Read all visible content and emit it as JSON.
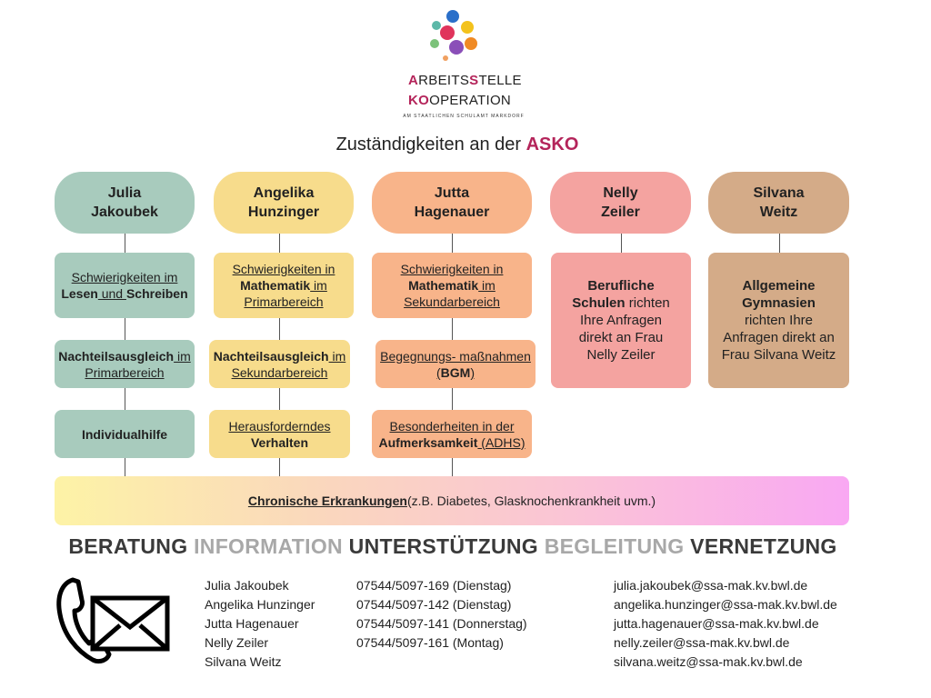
{
  "logo": {
    "line1_accent1": "A",
    "line1_a": "RBEITS",
    "line1_accent2": "S",
    "line1_b": "TELLE",
    "line2_accent": "KO",
    "line2_rest": "OPERATION",
    "subline": "AM STAATLICHEN SCHULAMT MARKDORF"
  },
  "title": {
    "prefix": "Zuständigkeiten an der ",
    "accent": "ASKO"
  },
  "colors": {
    "green": "#a8cbbd",
    "yellow": "#f7dc8c",
    "orange": "#f8b48a",
    "pink": "#f4a3a0",
    "tan": "#d4ab88",
    "accent": "#b4245a"
  },
  "people": [
    {
      "line1": "Julia",
      "line2": "Jakoubek"
    },
    {
      "line1": "Angelika",
      "line2": "Hunzinger"
    },
    {
      "line1": "Jutta",
      "line2": "Hagenauer"
    },
    {
      "line1": "Nelly",
      "line2": "Zeiler"
    },
    {
      "line1": "Silvana",
      "line2": "Weitz"
    }
  ],
  "boxes": [
    {
      "parts": [
        {
          "t": "Schwierigkeiten im "
        },
        {
          "t": "Lesen",
          "b": 1
        },
        {
          "t": " und "
        },
        {
          "t": "Schreiben",
          "b": 1
        }
      ]
    },
    {
      "parts": [
        {
          "t": "Nachteilsausgleich",
          "b": 1
        },
        {
          "t": " im Primarbereich"
        }
      ]
    },
    {
      "parts": [
        {
          "t": "Individualhilfe",
          "b": 1
        }
      ]
    },
    {
      "parts": [
        {
          "t": "Schwierigkeiten in "
        },
        {
          "t": "Mathematik",
          "b": 1
        },
        {
          "t": " im Primarbereich"
        }
      ]
    },
    {
      "parts": [
        {
          "t": "Nachteilsausgleich",
          "b": 1
        },
        {
          "t": " im Sekundarbereich"
        }
      ]
    },
    {
      "parts": [
        {
          "t": "Herausforderndes "
        },
        {
          "t": "Verhalten",
          "b": 1
        }
      ]
    },
    {
      "parts": [
        {
          "t": "Schwierigkeiten in "
        },
        {
          "t": "Mathematik",
          "b": 1
        },
        {
          "t": " im Sekundarbereich"
        }
      ]
    },
    {
      "parts": [
        {
          "t": "Begegnungs- maßnahmen ("
        },
        {
          "t": "BGM",
          "b": 1
        },
        {
          "t": ")"
        }
      ]
    },
    {
      "parts": [
        {
          "t": "Besonderheiten in der "
        },
        {
          "t": "Aufmerksamkeit",
          "b": 1
        },
        {
          "t": " (ADHS)"
        }
      ]
    },
    {
      "parts": [
        {
          "t": "Berufliche Schulen",
          "b": 1
        },
        {
          "t": " richten Ihre Anfragen direkt an Frau Nelly Zeiler"
        }
      ]
    },
    {
      "parts": [
        {
          "t": "Allgemeine Gymnasien",
          "b": 1
        },
        {
          "t": " richten Ihre Anfragen direkt an Frau Silvana Weitz"
        }
      ]
    }
  ],
  "bar": {
    "bold": "Chronische Erkrankungen",
    "rest": " (z.B. Diabetes, Glasknochenkrankheit uvm.)"
  },
  "tagline": [
    "BERATUNG",
    "INFORMATION",
    "UNTERSTÜTZUNG",
    "BEGLEITUNG",
    "VERNETZUNG"
  ],
  "contacts": {
    "icon": "phone-envelope-icon",
    "names": [
      "Julia Jakoubek",
      "Angelika Hunzinger",
      "Jutta Hagenauer",
      "Nelly Zeiler",
      "Silvana Weitz"
    ],
    "phones": [
      "07544/5097-169 (Dienstag)",
      "07544/5097-142 (Dienstag)",
      "07544/5097-141 (Donnerstag)",
      "07544/5097-161 (Montag)"
    ],
    "emails": [
      "julia.jakoubek@ssa-mak.kv.bwl.de",
      "angelika.hunzinger@ssa-mak.kv.bwl.de",
      "jutta.hagenauer@ssa-mak.kv.bwl.de",
      "nelly.zeiler@ssa-mak.kv.bwl.de",
      "silvana.weitz@ssa-mak.kv.bwl.de"
    ]
  }
}
